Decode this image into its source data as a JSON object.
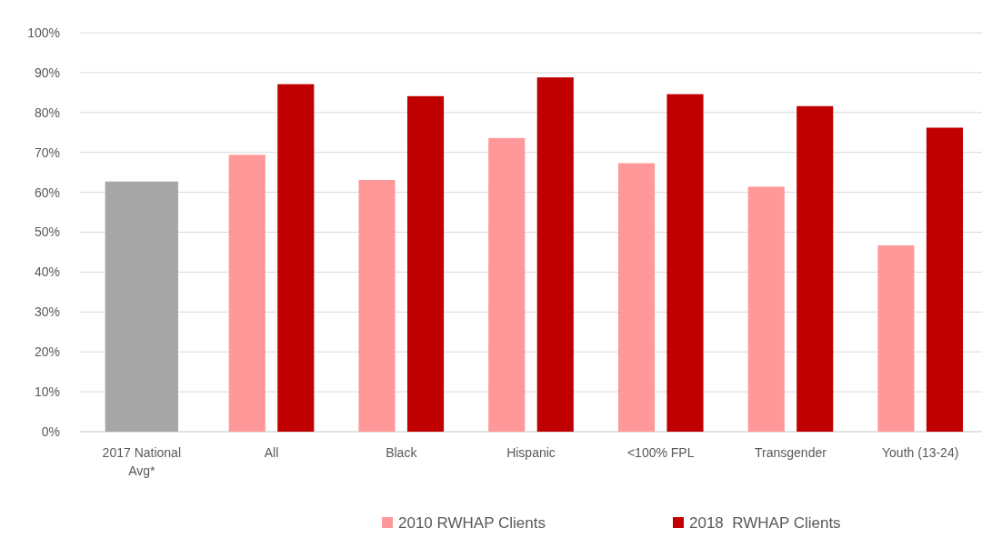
{
  "chart_data": {
    "type": "bar",
    "categories": [
      "2017 National Avg*",
      "All",
      "Black",
      "Hispanic",
      "<100% FPL",
      "Transgender",
      "Youth (13-24)"
    ],
    "series": [
      {
        "color": "#a6a6a6",
        "values": [
          62.7,
          null,
          null,
          null,
          null,
          null,
          null
        ]
      },
      {
        "name": "2010 RWHAP Clients",
        "color": "#ff9999",
        "values": [
          null,
          69.4,
          63.1,
          73.6,
          67.3,
          61.4,
          46.7
        ]
      },
      {
        "name": "2018  RWHAP Clients",
        "color": "#c00000",
        "values": [
          null,
          87.1,
          84.1,
          88.8,
          84.6,
          81.6,
          76.2
        ]
      }
    ],
    "ylim": [
      0,
      100
    ],
    "yticks": [
      {
        "value": 0,
        "label": "0%"
      },
      {
        "value": 10,
        "label": "10%"
      },
      {
        "value": 20,
        "label": "20%"
      },
      {
        "value": 30,
        "label": "30%"
      },
      {
        "value": 40,
        "label": "40%"
      },
      {
        "value": 50,
        "label": "50%"
      },
      {
        "value": 60,
        "label": "60%"
      },
      {
        "value": 70,
        "label": "70%"
      },
      {
        "value": 80,
        "label": "80%"
      },
      {
        "value": 90,
        "label": "90%"
      },
      {
        "value": 100,
        "label": "100%"
      }
    ],
    "grid": "y",
    "legend": "bottom"
  }
}
